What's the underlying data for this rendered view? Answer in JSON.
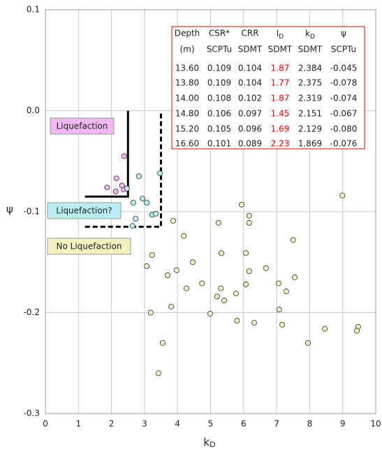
{
  "chart_data": {
    "type": "scatter",
    "x_label": {
      "main": "k",
      "sub": "D"
    },
    "y_label": "ψ",
    "xlim": [
      0,
      10
    ],
    "ylim": [
      -0.3,
      0.1
    ],
    "xticks": [
      0,
      1,
      2,
      3,
      4,
      5,
      6,
      7,
      8,
      9,
      10
    ],
    "yticks": [
      0.1,
      {
        "value": 0,
        "label": "0.0"
      },
      -0.1,
      -0.2,
      -0.3
    ],
    "grid": true,
    "series": [
      {
        "name": "Liquefaction",
        "color": "#f0b8f0",
        "x": [
          2.384,
          2.375,
          2.319,
          2.151,
          2.129,
          1.869
        ],
        "y": [
          -0.045,
          -0.078,
          -0.074,
          -0.067,
          -0.08,
          -0.076
        ]
      },
      {
        "name": "Liquefaction?",
        "color": "#b8eef0",
        "x": [
          2.47,
          2.66,
          2.83,
          2.94,
          3.07,
          2.73,
          2.64,
          3.23,
          3.34,
          3.47
        ],
        "y": [
          -0.077,
          -0.091,
          -0.065,
          -0.087,
          -0.091,
          -0.107,
          -0.114,
          -0.103,
          -0.102,
          -0.062
        ]
      },
      {
        "name": "No Liquefaction",
        "color": "#f2f2c0",
        "x": [
          3.87,
          4.19,
          3.23,
          3.07,
          3.7,
          3.97,
          4.46,
          4.27,
          4.74,
          3.81,
          3.19,
          3.55,
          3.42,
          4.99,
          5.24,
          5.33,
          5.31,
          5.2,
          5.41,
          5.77,
          5.8,
          5.94,
          6.07,
          6.17,
          6.17,
          6.17,
          6.07,
          6.32,
          6.68,
          7.06,
          7.08,
          7.17,
          7.29,
          7.5,
          7.55,
          7.95,
          8.46,
          8.99,
          9.47,
          9.43
        ],
        "y": [
          -0.109,
          -0.124,
          -0.143,
          -0.154,
          -0.163,
          -0.158,
          -0.15,
          -0.176,
          -0.171,
          -0.194,
          -0.2,
          -0.23,
          -0.26,
          -0.201,
          -0.111,
          -0.141,
          -0.176,
          -0.184,
          -0.188,
          -0.181,
          -0.208,
          -0.093,
          -0.141,
          -0.159,
          -0.104,
          -0.111,
          -0.172,
          -0.21,
          -0.156,
          -0.171,
          -0.197,
          -0.212,
          -0.179,
          -0.128,
          -0.165,
          -0.23,
          -0.216,
          -0.084,
          -0.214,
          -0.218
        ]
      }
    ],
    "boundary_lines": [
      {
        "style": "solid",
        "x": [
          1.2,
          2.5,
          2.5
        ],
        "y": [
          -0.085,
          -0.085,
          0
        ]
      },
      {
        "style": "dashed",
        "x": [
          1.2,
          3.5,
          3.5
        ],
        "y": [
          -0.115,
          -0.115,
          0
        ]
      }
    ],
    "table": {
      "header": [
        [
          "Depth",
          "CSR*",
          "CRR",
          {
            "main": "I",
            "sub": "D"
          },
          {
            "main": "k",
            "sub": "D"
          },
          "ψ"
        ],
        [
          "(m)",
          "SCPTu",
          "SDMT",
          "SDMT",
          "SDMT",
          "SCPTu"
        ]
      ],
      "highlight_column": 3,
      "highlight_color": "#ff0000",
      "rows": [
        [
          "13.60",
          "0.109",
          "0.104",
          "1.87",
          "2.384",
          "-0.045"
        ],
        [
          "13.80",
          "0.109",
          "0.104",
          "1.77",
          "2.375",
          "-0.078"
        ],
        [
          "14.00",
          "0.108",
          "0.102",
          "1.87",
          "2.319",
          "-0.074"
        ],
        [
          "14.80",
          "0.106",
          "0.097",
          "1.45",
          "2.151",
          "-0.067"
        ],
        [
          "15.20",
          "0.105",
          "0.096",
          "1.69",
          "2.129",
          "-0.080"
        ],
        [
          "16.60",
          "0.101",
          "0.089",
          "2.23",
          "1.869",
          "-0.076"
        ]
      ]
    }
  }
}
